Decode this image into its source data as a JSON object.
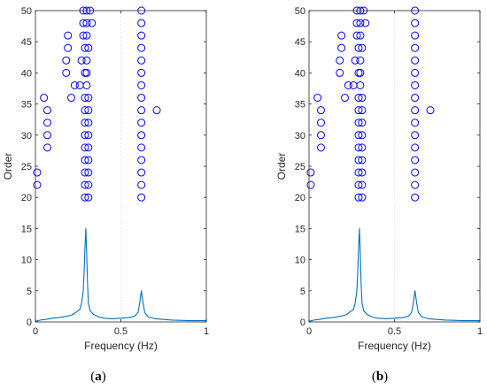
{
  "chart_data": [
    {
      "panel_caption": {
        "open": "(",
        "letter": "a",
        "close": ")"
      },
      "type": "scatter",
      "xlabel": "Frequency (Hz)",
      "ylabel": "Order",
      "xlim": [
        0,
        1
      ],
      "ylim": [
        0,
        50
      ],
      "xticks": [
        0,
        0.5,
        1
      ],
      "xtick_labels": [
        "0",
        "0.5",
        "1"
      ],
      "yticks": [
        0,
        5,
        10,
        15,
        20,
        25,
        30,
        35,
        40,
        45,
        50
      ],
      "ytick_labels": [
        "0",
        "5",
        "10",
        "15",
        "20",
        "25",
        "30",
        "35",
        "40",
        "45",
        "50"
      ],
      "grid": true,
      "colors": {
        "series": "#0000ff",
        "spectrum": "#0072bd",
        "axes": "#262626",
        "grid": "#dedede"
      },
      "series": [
        {
          "type": "scatter",
          "marker": "open-circle",
          "points": [
            [
              0.01,
              22
            ],
            [
              0.01,
              24
            ],
            [
              0.05,
              36
            ],
            [
              0.07,
              28
            ],
            [
              0.07,
              30
            ],
            [
              0.07,
              32
            ],
            [
              0.07,
              34
            ],
            [
              0.18,
              40
            ],
            [
              0.18,
              42
            ],
            [
              0.19,
              44
            ],
            [
              0.19,
              46
            ],
            [
              0.21,
              36
            ],
            [
              0.23,
              38
            ],
            [
              0.26,
              38
            ],
            [
              0.27,
              42
            ],
            [
              0.28,
              46
            ],
            [
              0.28,
              48
            ],
            [
              0.28,
              50
            ],
            [
              0.29,
              20
            ],
            [
              0.29,
              22
            ],
            [
              0.29,
              24
            ],
            [
              0.29,
              26
            ],
            [
              0.29,
              28
            ],
            [
              0.29,
              30
            ],
            [
              0.29,
              32
            ],
            [
              0.29,
              34
            ],
            [
              0.29,
              36
            ],
            [
              0.29,
              40
            ],
            [
              0.29,
              44
            ],
            [
              0.3,
              50
            ],
            [
              0.3,
              48
            ],
            [
              0.3,
              46
            ],
            [
              0.3,
              42
            ],
            [
              0.3,
              40
            ],
            [
              0.3,
              38
            ],
            [
              0.31,
              20
            ],
            [
              0.31,
              22
            ],
            [
              0.31,
              24
            ],
            [
              0.31,
              26
            ],
            [
              0.31,
              28
            ],
            [
              0.31,
              30
            ],
            [
              0.31,
              32
            ],
            [
              0.31,
              34
            ],
            [
              0.31,
              36
            ],
            [
              0.31,
              44
            ],
            [
              0.32,
              50
            ],
            [
              0.33,
              48
            ],
            [
              0.62,
              20
            ],
            [
              0.62,
              22
            ],
            [
              0.62,
              24
            ],
            [
              0.62,
              26
            ],
            [
              0.62,
              28
            ],
            [
              0.62,
              30
            ],
            [
              0.62,
              32
            ],
            [
              0.62,
              34
            ],
            [
              0.62,
              36
            ],
            [
              0.62,
              38
            ],
            [
              0.62,
              40
            ],
            [
              0.62,
              42
            ],
            [
              0.62,
              44
            ],
            [
              0.62,
              46
            ],
            [
              0.62,
              48
            ],
            [
              0.62,
              50
            ],
            [
              0.71,
              34
            ]
          ]
        },
        {
          "type": "line",
          "points": [
            [
              0,
              0.1
            ],
            [
              0.03,
              0.3
            ],
            [
              0.06,
              0.4
            ],
            [
              0.1,
              0.6
            ],
            [
              0.14,
              0.7
            ],
            [
              0.18,
              0.9
            ],
            [
              0.2,
              1.0
            ],
            [
              0.22,
              1.2
            ],
            [
              0.24,
              1.6
            ],
            [
              0.26,
              2.0
            ],
            [
              0.27,
              3.0
            ],
            [
              0.28,
              5.0
            ],
            [
              0.285,
              8.0
            ],
            [
              0.29,
              12.0
            ],
            [
              0.295,
              15.0
            ],
            [
              0.3,
              11.0
            ],
            [
              0.305,
              6.0
            ],
            [
              0.31,
              3.0
            ],
            [
              0.32,
              1.8
            ],
            [
              0.34,
              1.2
            ],
            [
              0.37,
              0.8
            ],
            [
              0.4,
              0.6
            ],
            [
              0.45,
              0.5
            ],
            [
              0.5,
              0.6
            ],
            [
              0.55,
              0.7
            ],
            [
              0.58,
              0.9
            ],
            [
              0.6,
              1.5
            ],
            [
              0.61,
              3.0
            ],
            [
              0.62,
              5.0
            ],
            [
              0.63,
              3.0
            ],
            [
              0.64,
              1.5
            ],
            [
              0.66,
              0.8
            ],
            [
              0.7,
              0.5
            ],
            [
              0.8,
              0.3
            ],
            [
              0.9,
              0.2
            ],
            [
              1.0,
              0.2
            ]
          ]
        }
      ]
    },
    {
      "panel_caption": {
        "open": "(",
        "letter": "b",
        "close": ")"
      },
      "type": "scatter",
      "xlabel": "Frequency (Hz)",
      "ylabel": "Order",
      "xlim": [
        0,
        1
      ],
      "ylim": [
        0,
        50
      ],
      "xticks": [
        0,
        0.5,
        1
      ],
      "xtick_labels": [
        "0",
        "0.5",
        "1"
      ],
      "yticks": [
        0,
        5,
        10,
        15,
        20,
        25,
        30,
        35,
        40,
        45,
        50
      ],
      "ytick_labels": [
        "0",
        "5",
        "10",
        "15",
        "20",
        "25",
        "30",
        "35",
        "40",
        "45",
        "50"
      ],
      "grid": true,
      "colors": {
        "series": "#0000ff",
        "spectrum": "#0072bd",
        "axes": "#262626",
        "grid": "#dedede"
      },
      "series": [
        {
          "type": "scatter",
          "marker": "open-circle",
          "points": [
            [
              0.01,
              22
            ],
            [
              0.01,
              24
            ],
            [
              0.05,
              36
            ],
            [
              0.07,
              28
            ],
            [
              0.07,
              30
            ],
            [
              0.07,
              32
            ],
            [
              0.07,
              34
            ],
            [
              0.18,
              40
            ],
            [
              0.18,
              42
            ],
            [
              0.19,
              44
            ],
            [
              0.19,
              46
            ],
            [
              0.21,
              36
            ],
            [
              0.23,
              38
            ],
            [
              0.26,
              38
            ],
            [
              0.27,
              42
            ],
            [
              0.28,
              46
            ],
            [
              0.28,
              48
            ],
            [
              0.28,
              50
            ],
            [
              0.29,
              20
            ],
            [
              0.29,
              22
            ],
            [
              0.29,
              24
            ],
            [
              0.29,
              26
            ],
            [
              0.29,
              28
            ],
            [
              0.29,
              30
            ],
            [
              0.29,
              32
            ],
            [
              0.29,
              34
            ],
            [
              0.29,
              36
            ],
            [
              0.29,
              40
            ],
            [
              0.29,
              44
            ],
            [
              0.3,
              50
            ],
            [
              0.3,
              48
            ],
            [
              0.3,
              46
            ],
            [
              0.3,
              42
            ],
            [
              0.3,
              40
            ],
            [
              0.3,
              38
            ],
            [
              0.31,
              20
            ],
            [
              0.31,
              22
            ],
            [
              0.31,
              24
            ],
            [
              0.31,
              26
            ],
            [
              0.31,
              28
            ],
            [
              0.31,
              30
            ],
            [
              0.31,
              32
            ],
            [
              0.31,
              34
            ],
            [
              0.31,
              36
            ],
            [
              0.31,
              44
            ],
            [
              0.32,
              50
            ],
            [
              0.33,
              48
            ],
            [
              0.62,
              20
            ],
            [
              0.62,
              22
            ],
            [
              0.62,
              24
            ],
            [
              0.62,
              26
            ],
            [
              0.62,
              28
            ],
            [
              0.62,
              30
            ],
            [
              0.62,
              32
            ],
            [
              0.62,
              34
            ],
            [
              0.62,
              36
            ],
            [
              0.62,
              38
            ],
            [
              0.62,
              40
            ],
            [
              0.62,
              42
            ],
            [
              0.62,
              44
            ],
            [
              0.62,
              46
            ],
            [
              0.62,
              48
            ],
            [
              0.62,
              50
            ],
            [
              0.71,
              34
            ]
          ]
        },
        {
          "type": "line",
          "points": [
            [
              0,
              0.1
            ],
            [
              0.03,
              0.3
            ],
            [
              0.06,
              0.4
            ],
            [
              0.1,
              0.6
            ],
            [
              0.14,
              0.7
            ],
            [
              0.18,
              0.9
            ],
            [
              0.2,
              1.0
            ],
            [
              0.22,
              1.2
            ],
            [
              0.24,
              1.6
            ],
            [
              0.26,
              2.0
            ],
            [
              0.27,
              3.0
            ],
            [
              0.28,
              5.0
            ],
            [
              0.285,
              8.0
            ],
            [
              0.29,
              12.0
            ],
            [
              0.295,
              15.0
            ],
            [
              0.3,
              11.0
            ],
            [
              0.305,
              6.0
            ],
            [
              0.31,
              3.0
            ],
            [
              0.32,
              1.8
            ],
            [
              0.34,
              1.2
            ],
            [
              0.37,
              0.8
            ],
            [
              0.4,
              0.6
            ],
            [
              0.45,
              0.5
            ],
            [
              0.5,
              0.6
            ],
            [
              0.55,
              0.7
            ],
            [
              0.58,
              0.9
            ],
            [
              0.6,
              1.5
            ],
            [
              0.61,
              3.0
            ],
            [
              0.62,
              5.0
            ],
            [
              0.63,
              3.0
            ],
            [
              0.64,
              1.5
            ],
            [
              0.66,
              0.8
            ],
            [
              0.7,
              0.5
            ],
            [
              0.8,
              0.3
            ],
            [
              0.9,
              0.2
            ],
            [
              1.0,
              0.2
            ]
          ]
        }
      ]
    }
  ]
}
